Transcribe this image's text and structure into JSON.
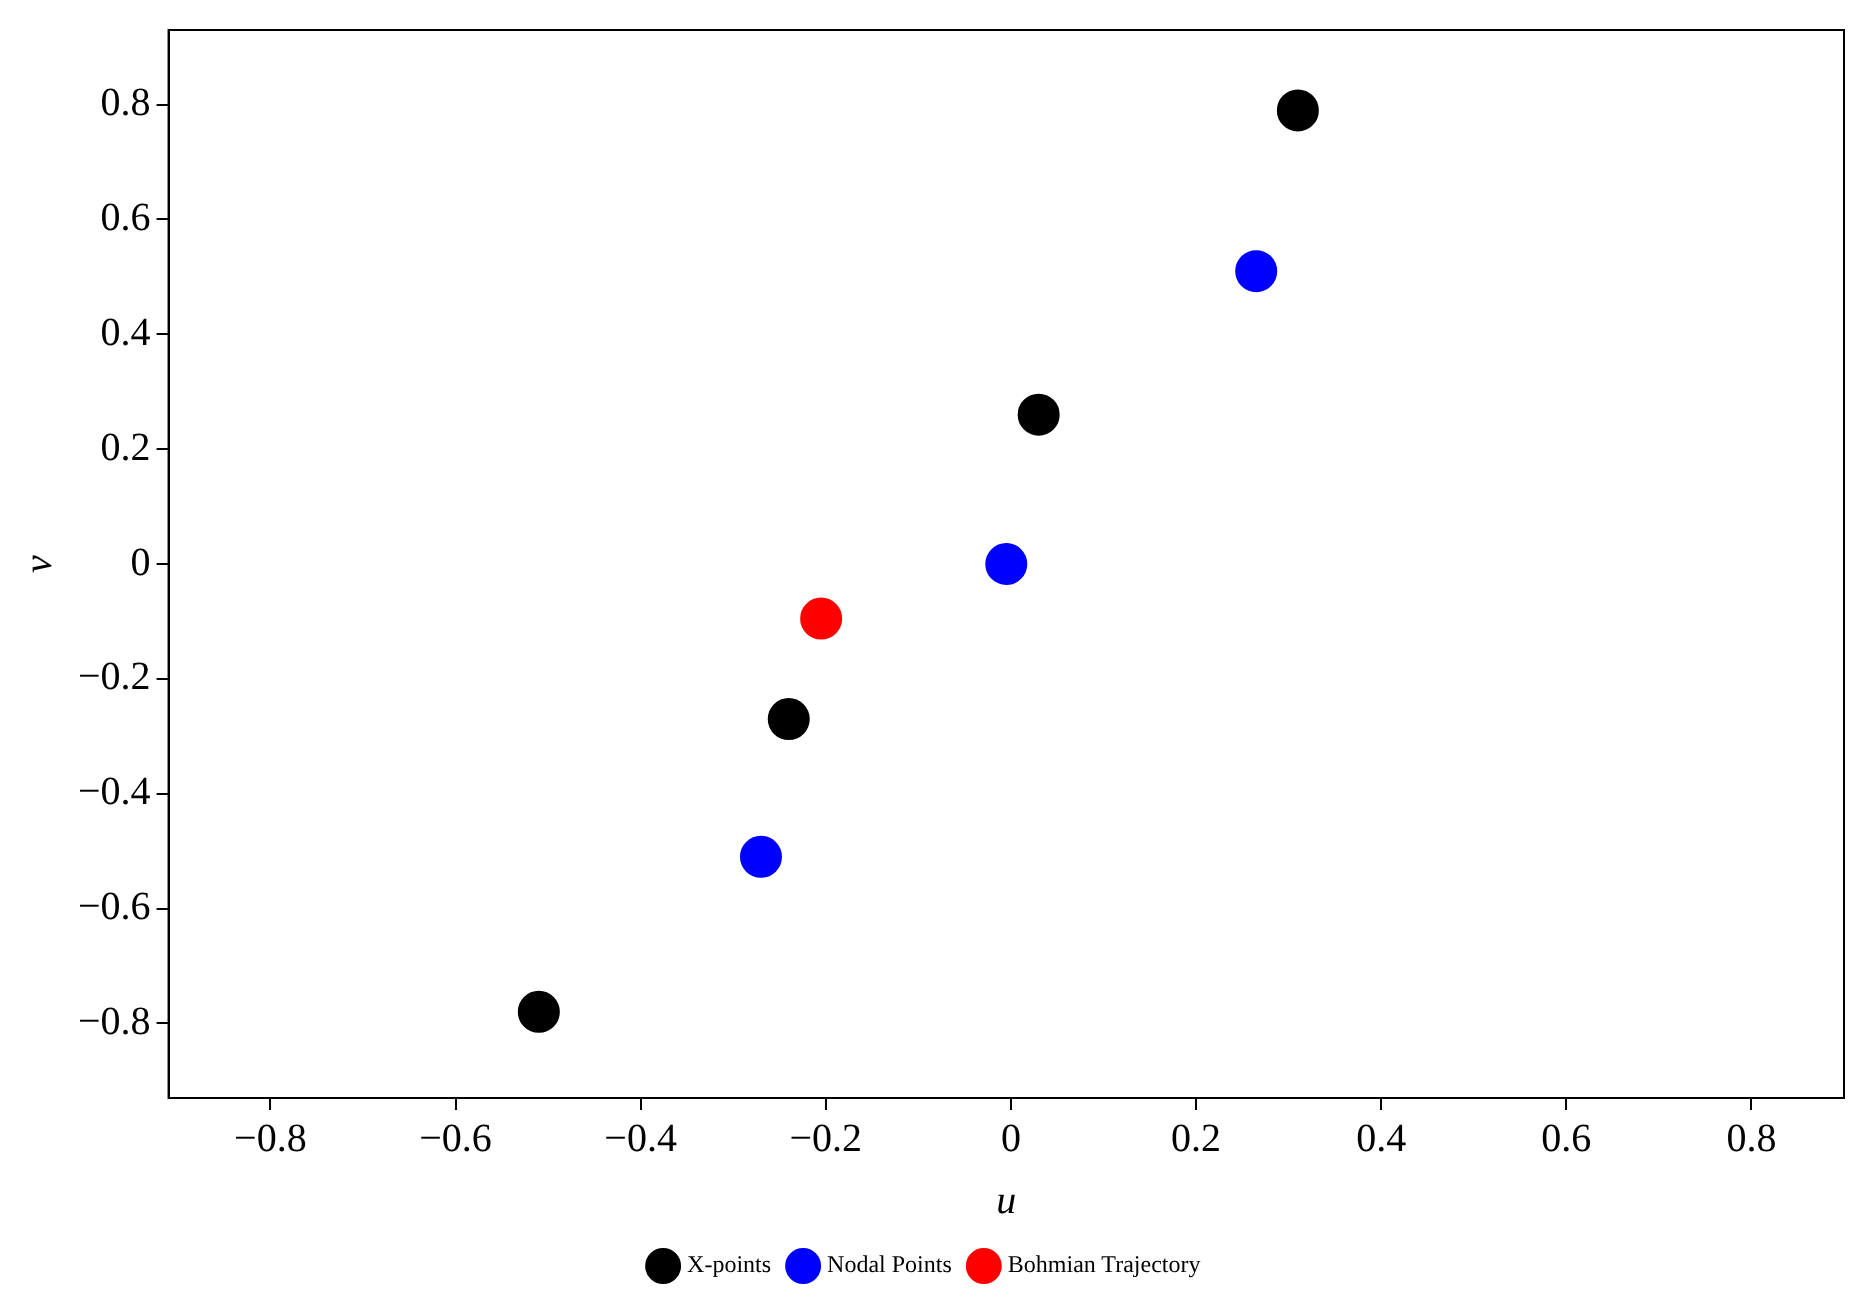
{
  "chart_data": {
    "type": "scatter",
    "xlabel": "u",
    "ylabel": "v",
    "xlim": [
      -0.91,
      0.9
    ],
    "ylim": [
      -0.93,
      0.93
    ],
    "xticks": [
      -0.8,
      -0.6,
      -0.4,
      -0.2,
      0,
      0.2,
      0.4,
      0.6,
      0.8
    ],
    "yticks": [
      -0.8,
      -0.6,
      -0.4,
      -0.2,
      0,
      0.2,
      0.4,
      0.6,
      0.8
    ],
    "grid": false,
    "legend": "bottom",
    "marker": "circle",
    "series": [
      {
        "name": "X-points",
        "color": "#000000",
        "x": [
          0.31,
          0.03,
          -0.24,
          -0.51
        ],
        "values": [
          0.79,
          0.26,
          -0.27,
          -0.78
        ]
      },
      {
        "name": "Nodal Points",
        "color": "#0000ff",
        "x": [
          0.265,
          -0.005,
          -0.27
        ],
        "values": [
          0.51,
          0,
          -0.51
        ]
      },
      {
        "name": "Bohmian Trajectory",
        "color": "#ff0000",
        "x": [
          -0.205
        ],
        "values": [
          -0.095
        ]
      }
    ]
  }
}
